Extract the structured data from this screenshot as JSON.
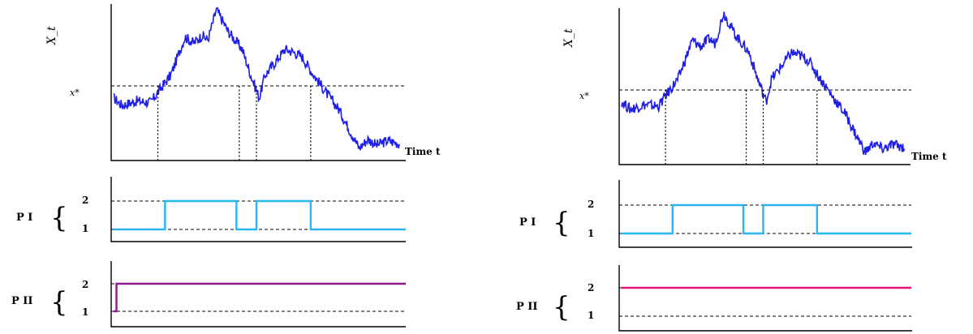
{
  "panels": [
    {
      "ylabel": "X_t",
      "threshold_label": "x*",
      "xlabel": "Time t",
      "regime_top_label": "P I",
      "regime_bottom_label": "P II",
      "tick_2": "2",
      "tick_1": "1"
    },
    {
      "ylabel": "X_t",
      "threshold_label": "x*",
      "xlabel": "Time t",
      "regime_top_label": "P I",
      "regime_bottom_label": "P II",
      "tick_2": "2",
      "tick_1": "1"
    }
  ],
  "colors": {
    "path": "#1f1fe6",
    "policy_one": "#29b6f6",
    "policy_two_left": "#8b1a8b",
    "policy_two_right": "#e0157a"
  },
  "chart_data": [
    {
      "type": "line",
      "title": "",
      "xlabel": "Time t",
      "ylabel": "X_t",
      "threshold": "x*",
      "path_x": [
        0,
        0.03,
        0.08,
        0.13,
        0.16,
        0.2,
        0.25,
        0.28,
        0.31,
        0.33,
        0.36,
        0.4,
        0.45,
        0.48,
        0.51,
        0.53,
        0.56,
        0.6,
        0.63,
        0.66,
        0.69,
        0.72,
        0.75,
        0.79,
        0.82,
        0.86,
        0.89,
        0.92,
        0.96,
        1.0
      ],
      "path_y": [
        0.4,
        0.35,
        0.38,
        0.37,
        0.45,
        0.55,
        0.8,
        0.76,
        0.81,
        0.78,
        0.98,
        0.84,
        0.72,
        0.55,
        0.4,
        0.55,
        0.62,
        0.72,
        0.7,
        0.67,
        0.58,
        0.5,
        0.42,
        0.32,
        0.21,
        0.07,
        0.13,
        0.09,
        0.12,
        0.1
      ],
      "crossings_x": [
        0.155,
        0.44,
        0.5,
        0.69
      ],
      "series": [
        {
          "name": "P I",
          "regime_steps": [
            [
              0,
              1
            ],
            [
              0.18,
              2
            ],
            [
              0.43,
              1
            ],
            [
              0.5,
              2
            ],
            [
              0.69,
              1
            ],
            [
              1.0,
              1
            ]
          ]
        },
        {
          "name": "P II",
          "regime_steps": [
            [
              0,
              1
            ],
            [
              0.01,
              2
            ],
            [
              1.0,
              2
            ]
          ]
        }
      ],
      "yticks": [
        "1",
        "2"
      ]
    },
    {
      "type": "line",
      "title": "",
      "xlabel": "Time t",
      "ylabel": "X_t",
      "threshold": "x*",
      "path_x": [
        0,
        0.03,
        0.08,
        0.13,
        0.16,
        0.2,
        0.25,
        0.28,
        0.31,
        0.33,
        0.36,
        0.4,
        0.45,
        0.48,
        0.51,
        0.53,
        0.56,
        0.6,
        0.63,
        0.66,
        0.69,
        0.72,
        0.75,
        0.79,
        0.82,
        0.86,
        0.89,
        0.92,
        0.96,
        1.0
      ],
      "path_y": [
        0.4,
        0.35,
        0.38,
        0.37,
        0.45,
        0.55,
        0.8,
        0.76,
        0.81,
        0.78,
        0.98,
        0.84,
        0.72,
        0.55,
        0.4,
        0.55,
        0.62,
        0.72,
        0.7,
        0.67,
        0.58,
        0.5,
        0.42,
        0.32,
        0.21,
        0.07,
        0.13,
        0.09,
        0.12,
        0.1
      ],
      "crossings_x": [
        0.155,
        0.44,
        0.5,
        0.69
      ],
      "series": [
        {
          "name": "P I",
          "regime_steps": [
            [
              0,
              1
            ],
            [
              0.18,
              2
            ],
            [
              0.43,
              1
            ],
            [
              0.5,
              2
            ],
            [
              0.69,
              1
            ],
            [
              1.0,
              1
            ]
          ]
        },
        {
          "name": "P II",
          "regime_steps": [
            [
              0,
              2
            ],
            [
              1.0,
              2
            ]
          ]
        }
      ],
      "yticks": [
        "1",
        "2"
      ]
    }
  ]
}
